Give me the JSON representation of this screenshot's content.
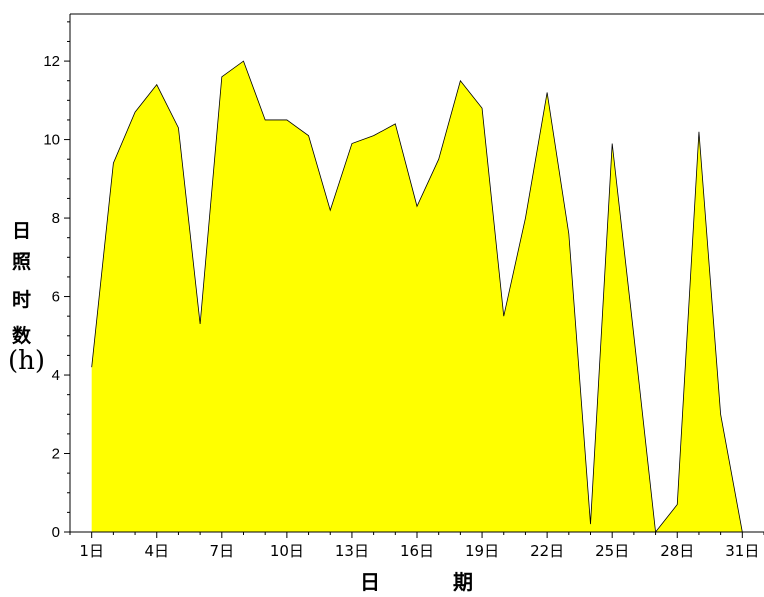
{
  "chart_data": {
    "type": "area",
    "x": [
      1,
      2,
      3,
      4,
      5,
      6,
      7,
      8,
      9,
      10,
      11,
      12,
      13,
      14,
      15,
      16,
      17,
      18,
      19,
      20,
      21,
      22,
      23,
      24,
      25,
      26,
      27,
      28,
      29,
      30,
      31
    ],
    "values": [
      4.2,
      9.4,
      10.7,
      11.4,
      10.3,
      5.3,
      11.6,
      12.0,
      10.5,
      10.5,
      10.1,
      8.2,
      9.9,
      10.1,
      10.4,
      8.3,
      9.5,
      11.5,
      10.8,
      5.5,
      8.0,
      11.2,
      7.6,
      0.2,
      9.9,
      5.0,
      0.0,
      0.7,
      10.2,
      3.0,
      0.0
    ],
    "xticks": [
      "1日",
      "4日",
      "7日",
      "10日",
      "13日",
      "16日",
      "19日",
      "22日",
      "25日",
      "28日",
      "31日"
    ],
    "xtick_positions": [
      1,
      4,
      7,
      10,
      13,
      16,
      19,
      22,
      25,
      28,
      31
    ],
    "yticks": [
      "0",
      "2",
      "4",
      "6",
      "8",
      "10",
      "12"
    ],
    "ylim": [
      0,
      13.2
    ],
    "xlim": [
      0,
      32
    ],
    "ylabel_chars": [
      "日",
      "照",
      "时",
      "数"
    ],
    "ylabel_unit": "(h)",
    "xlabel_chars": [
      "日",
      "期"
    ],
    "fill_color": "#ffff00",
    "stroke_color": "#000000",
    "grid": false,
    "legend": "none"
  }
}
